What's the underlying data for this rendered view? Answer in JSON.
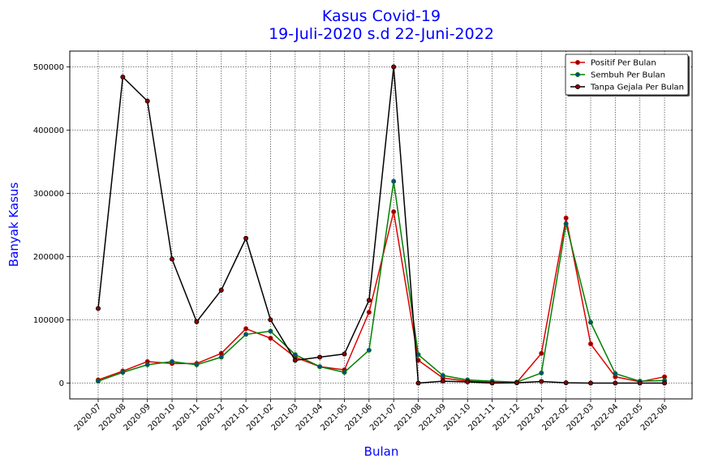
{
  "chart_data": {
    "type": "line",
    "title": "Kasus Covid-19",
    "subtitle": "19-Juli-2020 s.d 22-Juni-2022",
    "xlabel": "Bulan",
    "ylabel": "Banyak Kasus",
    "ylim": [
      -25000,
      525000
    ],
    "yticks": [
      0,
      100000,
      200000,
      300000,
      400000,
      500000
    ],
    "grid": true,
    "legend_position": "top-right",
    "categories": [
      "2020-07",
      "2020-08",
      "2020-09",
      "2020-10",
      "2020-11",
      "2020-12",
      "2021-01",
      "2021-02",
      "2021-03",
      "2021-04",
      "2021-05",
      "2021-06",
      "2021-07",
      "2021-08",
      "2021-09",
      "2021-10",
      "2021-11",
      "2021-12",
      "2022-01",
      "2022-02",
      "2022-03",
      "2022-04",
      "2022-05",
      "2022-06"
    ],
    "series": [
      {
        "name": "Positif Per Bulan",
        "color": "#dd0000",
        "marker_color": "#8b0000",
        "values": [
          5000,
          19000,
          34000,
          31000,
          31000,
          47000,
          86000,
          71000,
          41000,
          26000,
          21000,
          112000,
          271000,
          36000,
          8000,
          3000,
          1500,
          1000,
          47000,
          261000,
          62000,
          10000,
          2000,
          10000
        ]
      },
      {
        "name": "Sembuh Per Bulan",
        "color": "#008000",
        "marker_color": "#004a8f",
        "values": [
          3000,
          17000,
          29000,
          34000,
          29000,
          41000,
          77000,
          82000,
          45000,
          26000,
          17000,
          52000,
          319000,
          45000,
          12000,
          5000,
          3000,
          1500,
          16000,
          252000,
          96000,
          15000,
          3000,
          4000
        ]
      },
      {
        "name": "Tanpa Gejala Per Bulan",
        "color": "#000000",
        "marker_color": "#8b0000",
        "values": [
          118000,
          484000,
          446000,
          196000,
          97000,
          147000,
          229000,
          100000,
          36000,
          41000,
          46000,
          131000,
          500000,
          0,
          3000,
          2000,
          0,
          500,
          2500,
          500,
          0,
          0,
          0,
          0
        ]
      }
    ]
  }
}
